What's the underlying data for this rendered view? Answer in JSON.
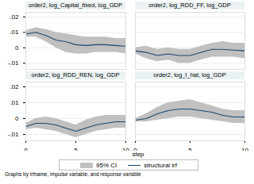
{
  "chart_data": {
    "type": "line",
    "xlabel": "step",
    "xlim": [
      0,
      10
    ],
    "xticks": [
      0,
      5,
      10
    ],
    "ylim": [
      -0.014,
      0.023
    ],
    "yticks": [
      {
        "value": 0.02,
        "label": ".02"
      },
      {
        "value": 0.01,
        "label": ".01"
      },
      0,
      {
        "value": -0.01,
        "label": "-.01"
      }
    ],
    "grid": true,
    "legend": "bottom",
    "note": "Graphs by irfname, impulse variable, and response variable",
    "panels": [
      {
        "title": "order2, log_Capital_fixed, log_GDP",
        "x": [
          0,
          1,
          2,
          3,
          4,
          5,
          6,
          7,
          8,
          9,
          10
        ],
        "series": [
          {
            "name": "95% CI",
            "type": "area",
            "color": "#c0c0c0",
            "lower": [
              0.007,
              0.007,
              0.004,
              0.0,
              -0.003,
              -0.004,
              -0.004,
              -0.003,
              -0.003,
              -0.003,
              -0.004
            ],
            "upper": [
              0.011,
              0.013,
              0.012,
              0.01,
              0.009,
              0.008,
              0.007,
              0.007,
              0.007,
              0.006,
              0.006
            ]
          },
          {
            "name": "structural irf",
            "type": "line",
            "color": "#1a476f",
            "values": [
              0.009,
              0.01,
              0.008,
              0.005,
              0.004,
              0.002,
              0.0015,
              0.002,
              0.002,
              0.0015,
              0.001
            ]
          }
        ]
      },
      {
        "title": "order2, log_RDD_FF, log_GDP",
        "x": [
          0,
          1,
          2,
          3,
          4,
          5,
          6,
          7,
          8,
          9,
          10
        ],
        "series": [
          {
            "name": "95% CI",
            "type": "area",
            "color": "#c0c0c0",
            "lower": [
              -0.004,
              -0.007,
              -0.009,
              -0.008,
              -0.01,
              -0.01,
              -0.008,
              -0.006,
              -0.006,
              -0.006,
              -0.007
            ],
            "upper": [
              0.0,
              0.001,
              -0.001,
              0.0,
              -0.001,
              -0.001,
              0.001,
              0.003,
              0.004,
              0.003,
              0.003
            ]
          },
          {
            "name": "structural irf",
            "type": "line",
            "color": "#1a476f",
            "values": [
              -0.002,
              -0.003,
              -0.005,
              -0.004,
              -0.005,
              -0.005,
              -0.003,
              -0.001,
              -0.001,
              -0.0015,
              -0.002
            ]
          }
        ]
      },
      {
        "title": "order2, log_RDD_REN, log_GDP",
        "x": [
          0,
          1,
          2,
          3,
          4,
          5,
          6,
          7,
          8,
          9,
          10
        ],
        "series": [
          {
            "name": "95% CI",
            "type": "area",
            "color": "#c0c0c0",
            "lower": [
              -0.007,
              -0.006,
              -0.007,
              -0.008,
              -0.01,
              -0.012,
              -0.01,
              -0.008,
              -0.007,
              -0.006,
              -0.006
            ],
            "upper": [
              -0.003,
              0.0,
              0.001,
              0.0,
              -0.002,
              -0.004,
              -0.001,
              0.001,
              0.002,
              0.002,
              0.002
            ]
          },
          {
            "name": "structural irf",
            "type": "line",
            "color": "#1a476f",
            "values": [
              -0.005,
              -0.003,
              -0.003,
              -0.004,
              -0.006,
              -0.008,
              -0.006,
              -0.004,
              -0.003,
              -0.002,
              -0.002
            ]
          }
        ]
      },
      {
        "title": "order2, log_I_hat, log_GDP",
        "x": [
          0,
          1,
          2,
          3,
          4,
          5,
          6,
          7,
          8,
          9,
          10
        ],
        "series": [
          {
            "name": "95% CI",
            "type": "area",
            "color": "#c0c0c0",
            "lower": [
              -0.002,
              -0.002,
              -0.001,
              0.0,
              0.001,
              0.001,
              0.0,
              -0.001,
              -0.002,
              -0.003,
              -0.003
            ],
            "upper": [
              0.0,
              0.003,
              0.007,
              0.01,
              0.011,
              0.012,
              0.01,
              0.008,
              0.006,
              0.005,
              0.005
            ]
          },
          {
            "name": "structural irf",
            "type": "line",
            "color": "#1a476f",
            "values": [
              -0.001,
              0.0,
              0.003,
              0.005,
              0.006,
              0.006,
              0.005,
              0.004,
              0.002,
              0.001,
              0.001
            ]
          }
        ]
      }
    ]
  }
}
